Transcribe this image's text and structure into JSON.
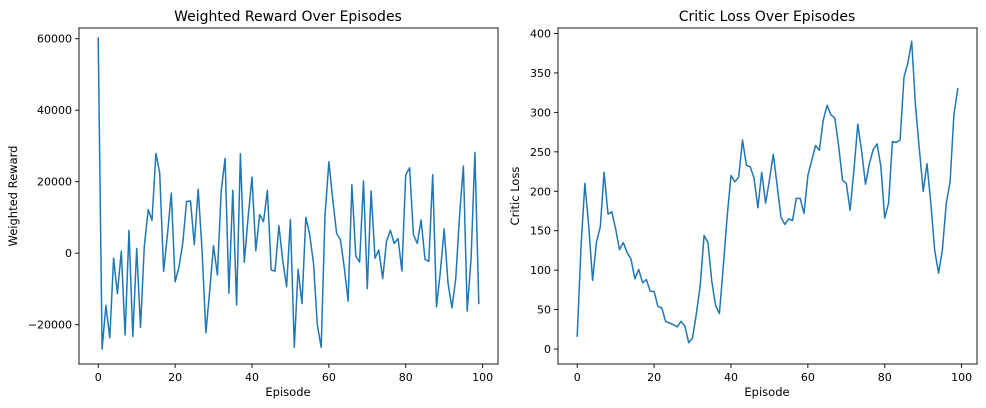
{
  "chart_data": [
    {
      "type": "line",
      "title": "Weighted Reward Over Episodes",
      "xlabel": "Episode",
      "ylabel": "Weighted Reward",
      "xlim": [
        -5,
        104
      ],
      "ylim": [
        -31000,
        63000
      ],
      "xticks": [
        0,
        20,
        40,
        60,
        80,
        100
      ],
      "yticks": [
        -20000,
        0,
        20000,
        40000,
        60000
      ],
      "grid": false,
      "color": "#1f77b4",
      "series": [
        {
          "x": [
            0,
            1,
            2,
            3,
            4,
            5,
            6,
            7,
            8,
            9,
            10,
            11,
            12,
            13,
            14,
            15,
            16,
            17,
            18,
            19,
            20,
            21,
            22,
            23,
            24,
            25,
            26,
            27,
            28,
            29,
            30,
            31,
            32,
            33,
            34,
            35,
            36,
            37,
            38,
            39,
            40,
            41,
            42,
            43,
            44,
            45,
            46,
            47,
            48,
            49,
            50,
            51,
            52,
            53,
            54,
            55,
            56,
            57,
            58,
            59,
            60,
            61,
            62,
            63,
            64,
            65,
            66,
            67,
            68,
            69,
            70,
            71,
            72,
            73,
            74,
            75,
            76,
            77,
            78,
            79,
            80,
            81,
            82,
            83,
            84,
            85,
            86,
            87,
            88,
            89,
            90,
            91,
            92,
            93,
            94,
            95,
            96,
            97,
            98,
            99
          ],
          "values": [
            60300,
            -26800,
            -14600,
            -23700,
            -1400,
            -11300,
            500,
            -22900,
            6400,
            -23300,
            1300,
            -20800,
            1900,
            12200,
            9200,
            27900,
            22500,
            -5100,
            5100,
            16800,
            -8000,
            -4000,
            2900,
            14500,
            14600,
            2400,
            17900,
            1100,
            -22300,
            -10500,
            2100,
            -6100,
            17400,
            26500,
            -11200,
            17600,
            -14500,
            27800,
            -2500,
            10000,
            21300,
            700,
            10800,
            8800,
            17600,
            -4700,
            -5000,
            7700,
            -1900,
            -9400,
            9400,
            -26300,
            -4500,
            -14100,
            10000,
            5300,
            -2800,
            -20000,
            -26300,
            10600,
            25600,
            15100,
            5600,
            3800,
            -3900,
            -13400,
            19100,
            -800,
            -2500,
            20200,
            -9900,
            17400,
            -1400,
            900,
            -7100,
            3300,
            6400,
            2700,
            4100,
            -5000,
            21900,
            23900,
            5200,
            2700,
            9300,
            -1700,
            -2300,
            22000,
            -15000,
            -5300,
            6800,
            -8300,
            -15300,
            -7300,
            10700,
            24400,
            -16200,
            -1400,
            28200,
            -14100
          ]
        }
      ]
    },
    {
      "type": "line",
      "title": "Critic Loss Over Episodes",
      "xlabel": "Episode",
      "ylabel": "Critic Loss",
      "xlim": [
        -5,
        104
      ],
      "ylim": [
        -19,
        407
      ],
      "xticks": [
        0,
        20,
        40,
        60,
        80,
        100
      ],
      "yticks": [
        0,
        50,
        100,
        150,
        200,
        250,
        300,
        350,
        400
      ],
      "grid": false,
      "color": "#1f77b4",
      "series": [
        {
          "x": [
            0,
            1,
            2,
            3,
            4,
            5,
            6,
            7,
            8,
            9,
            10,
            11,
            12,
            13,
            14,
            15,
            16,
            17,
            18,
            19,
            20,
            21,
            22,
            23,
            24,
            25,
            26,
            27,
            28,
            29,
            30,
            31,
            32,
            33,
            34,
            35,
            36,
            37,
            38,
            39,
            40,
            41,
            42,
            43,
            44,
            45,
            46,
            47,
            48,
            49,
            50,
            51,
            52,
            53,
            54,
            55,
            56,
            57,
            58,
            59,
            60,
            61,
            62,
            63,
            64,
            65,
            66,
            67,
            68,
            69,
            70,
            71,
            72,
            73,
            74,
            75,
            76,
            77,
            78,
            79,
            80,
            81,
            82,
            83,
            84,
            85,
            86,
            87,
            88,
            89,
            90,
            91,
            92,
            93,
            94,
            95,
            96,
            97,
            98,
            99
          ],
          "values": [
            16,
            132,
            210,
            155,
            87,
            135,
            155,
            224,
            171,
            174,
            152,
            126,
            135,
            122,
            114,
            89,
            101,
            84,
            88,
            73,
            73,
            54,
            52,
            35,
            33,
            31,
            28,
            35,
            29,
            8,
            14,
            45,
            80,
            144,
            135,
            86,
            55,
            45,
            105,
            167,
            220,
            212,
            218,
            265,
            233,
            231,
            217,
            179,
            224,
            185,
            214,
            247,
            208,
            167,
            158,
            165,
            163,
            191,
            191,
            172,
            220,
            239,
            258,
            252,
            290,
            309,
            297,
            293,
            258,
            214,
            210,
            176,
            228,
            285,
            250,
            209,
            235,
            253,
            260,
            231,
            166,
            185,
            263,
            262,
            265,
            345,
            362,
            390,
            308,
            254,
            200,
            235,
            184,
            125,
            96,
            126,
            184,
            212,
            297,
            330
          ]
        }
      ]
    }
  ]
}
